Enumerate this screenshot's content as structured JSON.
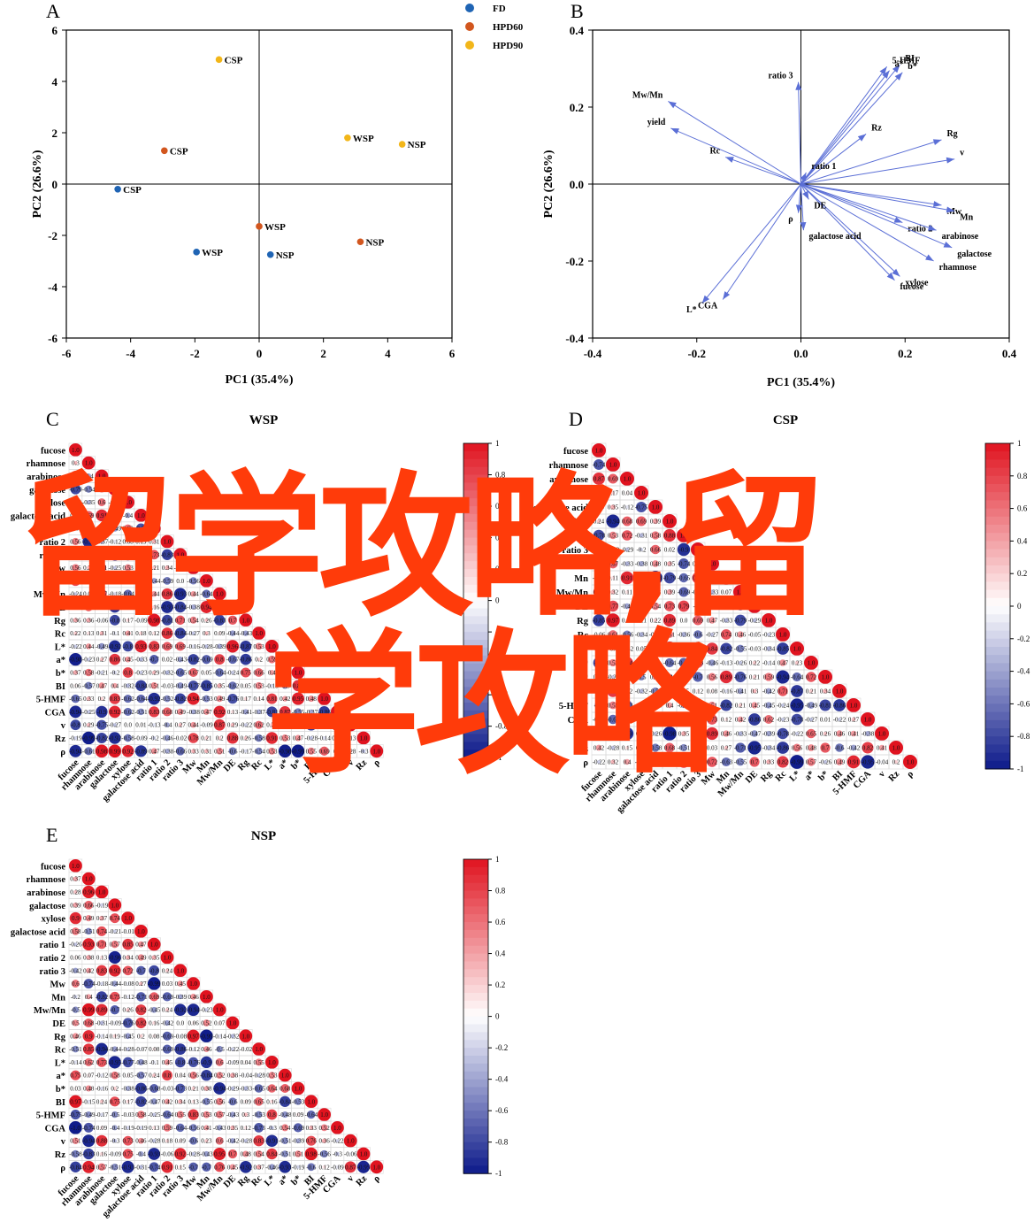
{
  "colors": {
    "FD": "#1f64b4",
    "HPD60": "#d2561e",
    "HPD90": "#f2b619",
    "arrow": "#5b6fd6",
    "pos": "#e0131f",
    "neg": "#0d1a8a"
  },
  "watermark": {
    "line1": "留学攻略,留",
    "line2": "学攻略"
  },
  "chart_data": [
    {
      "panel": "A",
      "type": "scatter",
      "xlabel": "PC1 (35.4%)",
      "ylabel": "PC2 (26.6%)",
      "xlim": [
        -6,
        6
      ],
      "ylim": [
        -6,
        6
      ],
      "xticks": [
        -6,
        -4,
        -2,
        0,
        2,
        4,
        6
      ],
      "yticks": [
        -6,
        -4,
        -2,
        0,
        2,
        4,
        6
      ],
      "legend": {
        "placement": "top-right-outside",
        "entries": [
          "FD",
          "HPD60",
          "HPD90"
        ]
      },
      "series": [
        {
          "name": "FD",
          "color": "#1f64b4",
          "points": [
            {
              "x": -4.4,
              "y": -0.2,
              "label": "CSP"
            },
            {
              "x": -1.95,
              "y": -2.65,
              "label": "WSP"
            },
            {
              "x": 0.35,
              "y": -2.75,
              "label": "NSP"
            }
          ]
        },
        {
          "name": "HPD60",
          "color": "#d2561e",
          "points": [
            {
              "x": -2.95,
              "y": 1.3,
              "label": "CSP"
            },
            {
              "x": 0.0,
              "y": -1.65,
              "label": "WSP"
            },
            {
              "x": 3.15,
              "y": -2.25,
              "label": "NSP"
            }
          ]
        },
        {
          "name": "HPD90",
          "color": "#f2b619",
          "points": [
            {
              "x": -1.25,
              "y": 4.85,
              "label": "CSP"
            },
            {
              "x": 2.75,
              "y": 1.8,
              "label": "WSP"
            },
            {
              "x": 4.45,
              "y": 1.55,
              "label": "NSP"
            }
          ]
        }
      ]
    },
    {
      "panel": "B",
      "type": "biplot",
      "xlabel": "PC1 (35.4%)",
      "ylabel": "PC2 (26.6%)",
      "xlim": [
        -0.4,
        0.4
      ],
      "ylim": [
        -0.4,
        0.4
      ],
      "xticks": [
        "-0.4",
        "-0.2",
        "0.0",
        "0.2",
        "0.4"
      ],
      "yticks": [
        "-0.4",
        "-0.2",
        "0.0",
        "0.2",
        "0.4"
      ],
      "vectors": [
        {
          "label": "5-HMF",
          "x": 0.165,
          "y": 0.305
        },
        {
          "label": "BI",
          "x": 0.19,
          "y": 0.31
        },
        {
          "label": "a*",
          "x": 0.17,
          "y": 0.295
        },
        {
          "label": "b*",
          "x": 0.195,
          "y": 0.29
        },
        {
          "label": "ratio 3",
          "x": -0.005,
          "y": 0.265
        },
        {
          "label": "Mw/Mn",
          "x": -0.255,
          "y": 0.215
        },
        {
          "label": "yield",
          "x": -0.25,
          "y": 0.145
        },
        {
          "label": "Rc",
          "x": -0.145,
          "y": 0.07
        },
        {
          "label": "Rz",
          "x": 0.125,
          "y": 0.13
        },
        {
          "label": "Rg",
          "x": 0.27,
          "y": 0.115
        },
        {
          "label": "v",
          "x": 0.295,
          "y": 0.065
        },
        {
          "label": "ratio 1",
          "x": 0.01,
          "y": 0.03
        },
        {
          "label": "Mw",
          "x": 0.27,
          "y": -0.055
        },
        {
          "label": "Mn",
          "x": 0.295,
          "y": -0.07
        },
        {
          "label": "ratio 2",
          "x": 0.195,
          "y": -0.1
        },
        {
          "label": "arabinose",
          "x": 0.26,
          "y": -0.12
        },
        {
          "label": "galactose",
          "x": 0.29,
          "y": -0.165
        },
        {
          "label": "rhamnose",
          "x": 0.255,
          "y": -0.2
        },
        {
          "label": "xylose",
          "x": 0.19,
          "y": -0.24
        },
        {
          "label": "fucose",
          "x": 0.18,
          "y": -0.25
        },
        {
          "label": "DE",
          "x": 0.015,
          "y": -0.04
        },
        {
          "label": "ρ",
          "x": -0.005,
          "y": -0.075
        },
        {
          "label": "galactose acid",
          "x": 0.005,
          "y": -0.12
        },
        {
          "label": "L*",
          "x": -0.19,
          "y": -0.31
        },
        {
          "label": "CGA",
          "x": -0.15,
          "y": -0.3
        }
      ]
    },
    {
      "panel": "C",
      "type": "heatmap",
      "title": "WSP",
      "seed": 11,
      "variables": [
        "fucose",
        "rhamnose",
        "arabinose",
        "galactose",
        "xylose",
        "galactose acid",
        "ratio 1",
        "ratio 2",
        "ratio 3",
        "Mw",
        "Mn",
        "Mw/Mn",
        "DE",
        "Rg",
        "Rc",
        "L*",
        "a*",
        "b*",
        "BI",
        "5-HMF",
        "CGA",
        "v",
        "Rz",
        "ρ"
      ],
      "colorbar": [
        "1",
        "0.8",
        "0.6",
        "0.4",
        "0.2",
        "0",
        "-0.2",
        "-0.4",
        "-0.6",
        "-0.8",
        "-1"
      ]
    },
    {
      "panel": "D",
      "type": "heatmap",
      "title": "CSP",
      "seed": 23,
      "variables": [
        "fucose",
        "rhamnose",
        "arabinose",
        "xylose",
        "galactose acid",
        "ratio 1",
        "ratio 2",
        "ratio 3",
        "Mw",
        "Mn",
        "Mw/Mn",
        "DE",
        "Rg",
        "Rc",
        "L*",
        "a*",
        "b*",
        "BI",
        "5-HMF",
        "CGA",
        "v",
        "Rz",
        "ρ"
      ],
      "colorbar": [
        "1",
        "0.8",
        "0.6",
        "0.4",
        "0.2",
        "0",
        "-0.2",
        "-0.4",
        "-0.6",
        "-0.8",
        "-1"
      ]
    },
    {
      "panel": "E",
      "type": "heatmap",
      "title": "NSP",
      "seed": 37,
      "variables": [
        "fucose",
        "rhamnose",
        "arabinose",
        "galactose",
        "xylose",
        "galactose acid",
        "ratio 1",
        "ratio 2",
        "ratio 3",
        "Mw",
        "Mn",
        "Mw/Mn",
        "DE",
        "Rg",
        "Rc",
        "L*",
        "a*",
        "b*",
        "BI",
        "5-HMF",
        "CGA",
        "v",
        "Rz",
        "ρ"
      ],
      "colorbar": [
        "1",
        "0.8",
        "0.6",
        "0.4",
        "0.2",
        "0",
        "-0.2",
        "-0.4",
        "-0.6",
        "-0.8",
        "-1"
      ]
    }
  ]
}
